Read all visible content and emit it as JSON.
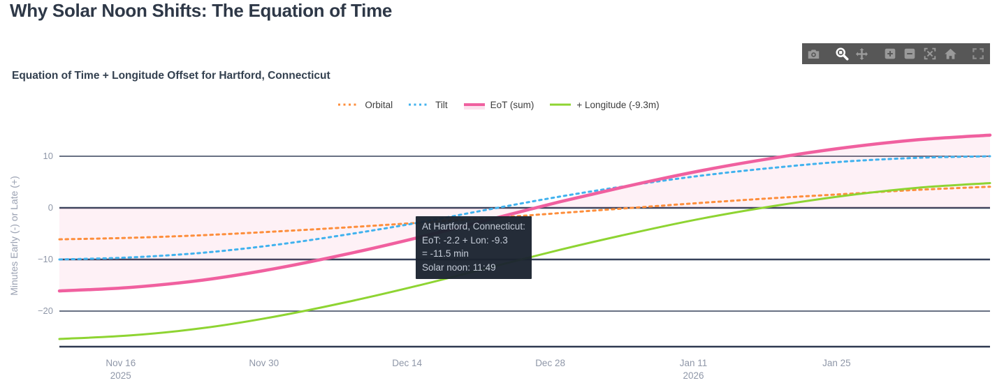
{
  "page": {
    "title": "Why Solar Noon Shifts: The Equation of Time"
  },
  "modebar": {
    "icons": [
      "camera",
      "box-zoom",
      "pan",
      "zoom-in",
      "zoom-out",
      "autoscale",
      "reset-home",
      "fullscreen"
    ],
    "active_icon": "box-zoom",
    "bar_color": "#575757",
    "icon_color": "#9a9a9a",
    "active_color": "#ffffff"
  },
  "tooltip": {
    "lines": [
      "At Hartford, Connecticut:",
      "EoT: -2.2 + Lon: -9.3",
      "= -11.5 min",
      "Solar noon: 11:49"
    ]
  },
  "chart_data": {
    "type": "line",
    "title": "Equation of Time + Longitude Offset for Hartford, Connecticut",
    "xlabel": "",
    "ylabel": "Minutes Early (-) or Late (+)",
    "grid": true,
    "legend_position": "top-center",
    "y_range": [
      -27,
      14.7
    ],
    "x_days": [
      0,
      7,
      14,
      21,
      28,
      35,
      42,
      49,
      56,
      63,
      70,
      77,
      84,
      91
    ],
    "x_ticks": [
      {
        "label": "Nov 16",
        "year": "2025",
        "day": 6
      },
      {
        "label": "Nov 30",
        "year": "",
        "day": 20
      },
      {
        "label": "Dec 14",
        "year": "",
        "day": 34
      },
      {
        "label": "Dec 28",
        "year": "",
        "day": 48
      },
      {
        "label": "Jan 11",
        "year": "2026",
        "day": 62
      },
      {
        "label": "Jan 25",
        "year": "",
        "day": 76
      }
    ],
    "y_ticks": [
      {
        "label": "10",
        "value": 10
      },
      {
        "label": "0",
        "value": 0
      },
      {
        "label": "−10",
        "value": -10
      },
      {
        "label": "−20",
        "value": -20
      }
    ],
    "series": [
      {
        "name": "Orbital",
        "color": "#fd8e3c",
        "style": "dotted",
        "width": 3,
        "values": [
          -6.1,
          -5.8,
          -5.3,
          -4.6,
          -3.8,
          -2.9,
          -2.0,
          -1.0,
          0.0,
          1.0,
          1.9,
          2.7,
          3.5,
          4.1
        ]
      },
      {
        "name": "Tilt",
        "color": "#41b2ee",
        "style": "dotted",
        "width": 3,
        "values": [
          -10.0,
          -9.6,
          -8.7,
          -7.2,
          -5.2,
          -2.9,
          -0.3,
          2.2,
          4.4,
          6.3,
          7.8,
          9.0,
          9.7,
          10.0
        ]
      },
      {
        "name": "EoT (sum)",
        "color": "#f0609f",
        "style": "solid",
        "width": 4.5,
        "fill": "tozeroy",
        "fill_color": "rgba(240,96,159,0.09)",
        "values": [
          -16.1,
          -15.4,
          -14.0,
          -11.8,
          -9.0,
          -5.8,
          -2.3,
          1.2,
          4.4,
          7.3,
          9.7,
          11.7,
          13.2,
          14.1
        ]
      },
      {
        "name": "+ Longitude (-9.3m)",
        "color": "#8ed432",
        "style": "solid",
        "width": 3,
        "values": [
          -25.4,
          -24.7,
          -23.3,
          -21.1,
          -18.3,
          -15.1,
          -11.6,
          -8.1,
          -4.9,
          -2.0,
          0.4,
          2.4,
          3.9,
          4.8
        ]
      }
    ]
  }
}
